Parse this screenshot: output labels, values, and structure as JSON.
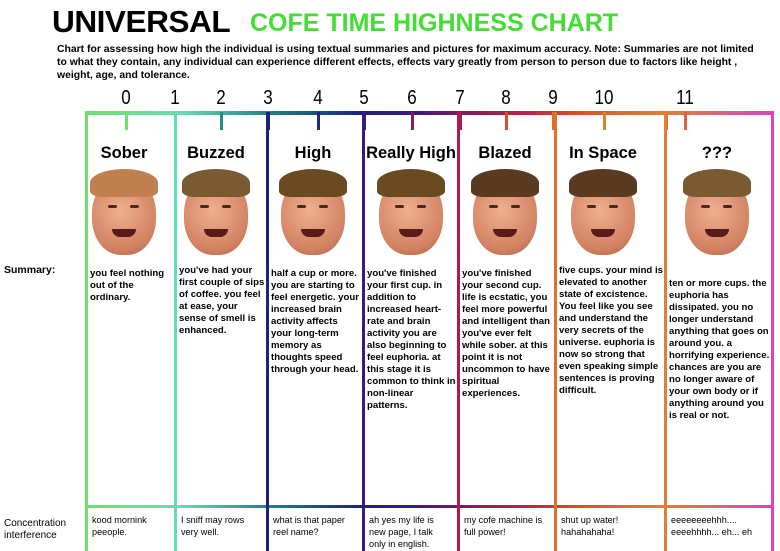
{
  "title": {
    "part1": "UNIVERSAL",
    "part2": "COFE TIME HIGHNESS CHART"
  },
  "description": "Chart for assessing how high the individual is using textual summaries and pictures for maximum accuracy. Note: Summaries are not limited to what they contain, any individual can experience different effects, effects vary greatly from person to person due to factors like height , weight, age, and tolerance.",
  "scale": [
    "0",
    "1",
    "2",
    "3",
    "4",
    "5",
    "6",
    "7",
    "8",
    "9",
    "10",
    "11"
  ],
  "row_labels": {
    "summary": "Summary:",
    "concentration": "Concentration interference"
  },
  "colors": {
    "title_green": "#44dd33",
    "scale_start": "#70e070",
    "scale_end": "#e040c0"
  },
  "stages": [
    {
      "name": "Sober",
      "summary": "you feel nothing out of the ordinary.",
      "concentration": "kood mornink peeople."
    },
    {
      "name": "Buzzed",
      "summary": "you've had your first couple of sips of coffee. you feel at ease, your sense of smell is enhanced.",
      "concentration": "I sniff may rows very well."
    },
    {
      "name": "High",
      "summary": "half a cup or more. you are starting to feel energetic. your increased brain activity affects your long-term memory as thoughts speed through your head.",
      "concentration": "what is that paper reel name?"
    },
    {
      "name": "Really High",
      "summary": "you've finished your first cup. in addition to increased heart-rate and brain activity you are also beginning to feel euphoria. at this stage it is common to think in non-linear patterns.",
      "concentration": "ah yes my life is new page, I talk only in english."
    },
    {
      "name": "Blazed",
      "summary": "you've finished your second cup. life is ecstatic, you feel more powerful and intelligent than you've ever felt while sober. at this point it is not uncommon to have spiritual experiences.",
      "concentration": "my cofe machine is full power!"
    },
    {
      "name": "In Space",
      "summary": "five cups. your mind is elevated to another state of excistence. You feel like you see and understand the very secrets of the universe. euphoria is now so strong that even speaking simple sentences is proving difficult.",
      "concentration": "shut up water! hahahahaha!"
    },
    {
      "name": "???",
      "summary": "ten or more cups. the euphoria has dissipated. you no longer understand anything that goes on around you. a horrifying experience. chances are you are no longer aware of your own body or if anything around you is real or not.",
      "concentration": "eeeeeeeehhh.... eeeehhhh... eh... eh"
    }
  ]
}
